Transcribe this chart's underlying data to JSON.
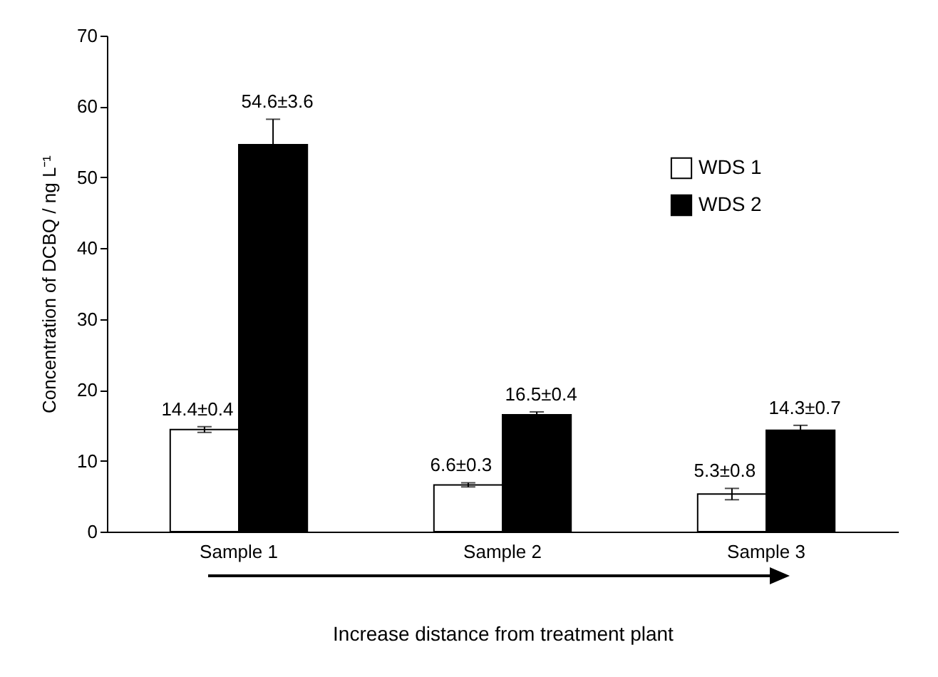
{
  "chart_data": {
    "type": "bar",
    "xlabel": "Increase distance from treatment plant",
    "ylabel": "Concentration of DCBQ / ng L⁻¹",
    "categories": [
      "Sample 1",
      "Sample 2",
      "Sample 3"
    ],
    "series": [
      {
        "name": "WDS 1",
        "color": "#ffffff",
        "values": [
          14.4,
          6.6,
          5.3
        ],
        "errors": [
          0.4,
          0.3,
          0.8
        ],
        "value_labels": [
          "14.4±0.4",
          "6.6±0.3",
          "5.3±0.8"
        ]
      },
      {
        "name": "WDS 2",
        "color": "#000000",
        "values": [
          54.6,
          16.5,
          14.3
        ],
        "errors": [
          3.6,
          0.4,
          0.7
        ],
        "value_labels": [
          "54.6±3.6",
          "16.5±0.4",
          "14.3±0.7"
        ]
      }
    ],
    "ylim": [
      0,
      70
    ],
    "yticks": [
      0,
      10,
      20,
      30,
      40,
      50,
      60,
      70
    ],
    "grid": false,
    "legend": "top right"
  }
}
